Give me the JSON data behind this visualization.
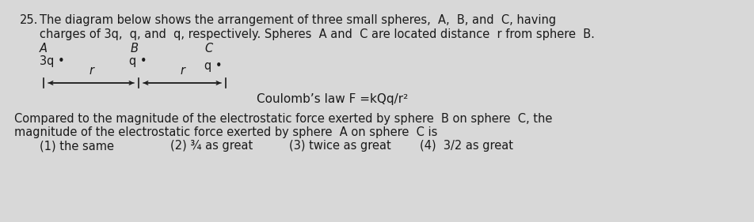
{
  "bg_color": "#d8d8d8",
  "text_color": "#1a1a1a",
  "question_number": "25.",
  "line1": "The diagram below shows the arrangement of three small spheres, A, B, and C, having",
  "line2": "charges of 3q, q, and q, respectively. Spheres A and C are located distance r from sphere B.",
  "label_A": "A",
  "label_B": "B",
  "label_C": "C",
  "sphere_A_label": "3q •",
  "sphere_B_label": "q •",
  "sphere_C_label": "q •",
  "coulombs_law": "Coulomb’s law F =kQq/r²",
  "qbody1": "Compared to the magnitude of the electrostatic force exerted by sphere B on sphere C, the",
  "qbody2": "magnitude of the electrostatic force exerted by sphere A on sphere C is",
  "choice1": "(1) the same",
  "choice2": "(2) ¾ as great",
  "choice3": "(3) twice as great",
  "choice4": "(4)  3/2 as great",
  "fs": 10.5
}
